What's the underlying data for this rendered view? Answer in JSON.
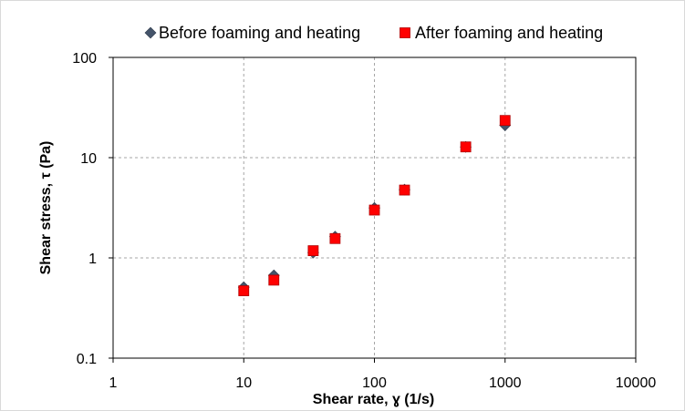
{
  "chart_data": {
    "type": "scatter",
    "title": "",
    "xlabel": "Shear rate, ɣ (1/s)",
    "ylabel": "Shear stress, τ (Pa)",
    "x_scale": "log",
    "y_scale": "log",
    "xlim": [
      1,
      10000
    ],
    "ylim": [
      0.1,
      100
    ],
    "x_ticks": [
      "1",
      "10",
      "100",
      "1000",
      "10000"
    ],
    "y_ticks": [
      "0.1",
      "1",
      "10",
      "100"
    ],
    "grid": true,
    "legend_position": "top",
    "series": [
      {
        "name": "Before foaming and heating",
        "marker": "diamond",
        "color": "#44546a",
        "x": [
          10,
          17,
          34,
          50,
          100,
          170,
          500,
          1000
        ],
        "y": [
          0.51,
          0.67,
          1.13,
          1.63,
          3.15,
          4.8,
          12.8,
          21
        ]
      },
      {
        "name": "After foaming and heating",
        "marker": "square",
        "color": "#ff0000",
        "x": [
          10,
          17,
          34,
          50,
          100,
          170,
          500,
          1000
        ],
        "y": [
          0.47,
          0.6,
          1.18,
          1.56,
          3.0,
          4.75,
          12.8,
          23.5
        ]
      }
    ]
  }
}
